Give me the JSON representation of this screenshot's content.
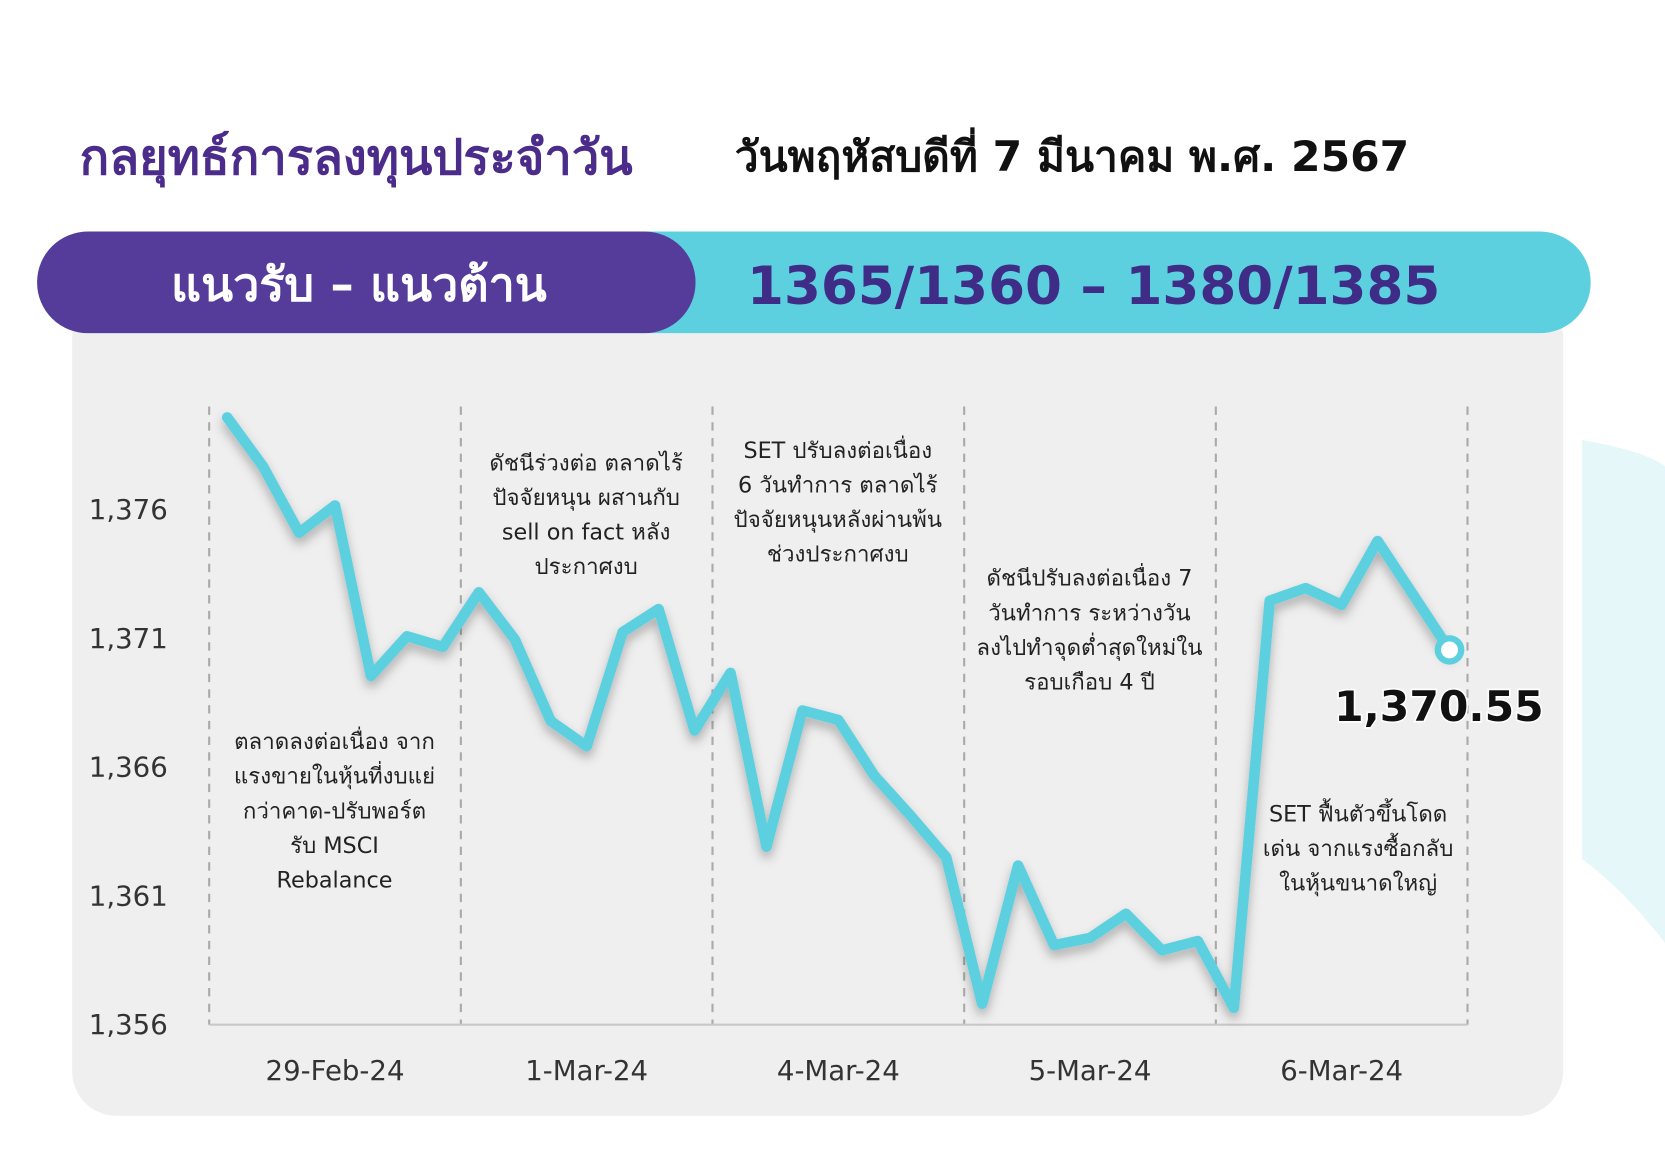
{
  "header": {
    "title": "กลยุทธ์การลงทุนประจำวัน",
    "date": "วันพฤหัสบดีที่ 7 มีนาคม พ.ศ. 2567",
    "banner_label": "แนวรับ – แนวต้าน",
    "banner_value": "1365/1360 – 1380/1385"
  },
  "chart_data": {
    "type": "line",
    "categories": [
      null,
      null,
      null,
      "29-Feb-24",
      null,
      null,
      null,
      null,
      null,
      null,
      "1-Mar-24",
      null,
      null,
      null,
      null,
      null,
      null,
      "4-Mar-24",
      null,
      null,
      null,
      null,
      null,
      null,
      "5-Mar-24",
      null,
      null,
      null,
      null,
      null,
      null,
      "6-Mar-24",
      null,
      null,
      null
    ],
    "series": [
      {
        "name": "SET",
        "color": "#5dd0e0",
        "values": [
          1379.58,
          1377.67,
          1375.1,
          1376.16,
          1369.54,
          1371.08,
          1370.67,
          1372.79,
          1370.96,
          1367.79,
          1366.81,
          1371.24,
          1372.14,
          1367.42,
          1369.66,
          1362.91,
          1368.2,
          1367.83,
          1365.67,
          1364.13,
          1362.5,
          1356.81,
          1362.18,
          1359.09,
          1359.37,
          1360.31,
          1358.89,
          1359.25,
          1356.65,
          1372.46,
          1372.95,
          1372.3,
          1374.78,
          1372.67,
          1370.55
        ],
        "value_labels": [
          null,
          null,
          null,
          null,
          null,
          null,
          null,
          null,
          null,
          null,
          null,
          null,
          null,
          null,
          null,
          null,
          null,
          null,
          null,
          null,
          null,
          null,
          null,
          null,
          null,
          null,
          null,
          null,
          null,
          null,
          null,
          null,
          null,
          null,
          "1,370.55"
        ]
      }
    ],
    "ylim": [
      1356,
      1380
    ],
    "yticks": [
      {
        "value": 1356,
        "label": "1,356"
      },
      {
        "value": 1361,
        "label": "1,361"
      },
      {
        "value": 1366,
        "label": "1,366"
      },
      {
        "value": 1371,
        "label": "1,371"
      },
      {
        "value": 1376,
        "label": "1,376"
      }
    ],
    "annotations": [
      [
        "ตลาดลงต่อเนื่อง จาก",
        "แรงขายในหุ้นที่งบแย่",
        "กว่าคาด-ปรับพอร์ต",
        "รับ MSCI",
        "Rebalance"
      ],
      [
        "ดัชนีร่วงต่อ ตลาดไร้",
        "ปัจจัยหนุน ผสานกับ",
        "sell on fact หลัง",
        "ประกาศงบ"
      ],
      [
        "SET ปรับลงต่อเนื่อง",
        "6 วันทำการ ตลาดไร้",
        "ปัจจัยหนุนหลังผ่านพ้น",
        "ช่วงประกาศงบ"
      ],
      [
        "ดัชนีปรับลงต่อเนื่อง 7",
        "วันทำการ ระหว่างวัน",
        "ลงไปทำจุดต่ำสุดใหม่ใน",
        "รอบเกือบ 4 ปี"
      ],
      [
        "SET ฟื้นตัวขึ้นโดด",
        "เด่น จากแรงซื้อกลับ",
        "ในหุ้นขนาดใหญ่"
      ]
    ]
  }
}
